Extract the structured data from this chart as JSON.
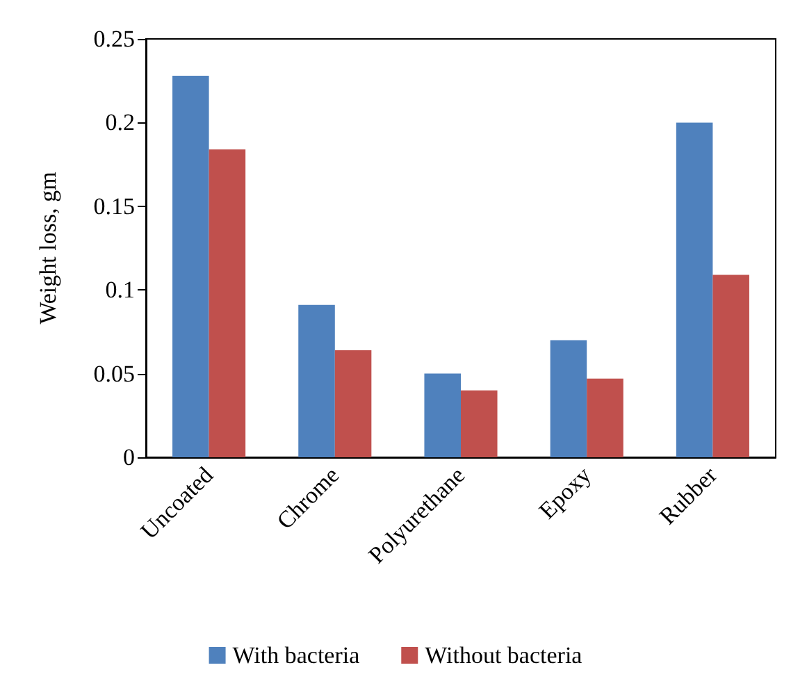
{
  "chart_data": {
    "type": "bar",
    "ylabel": "Weight loss, gm",
    "categories": [
      "Uncoated",
      "Chrome",
      "Polyurethane",
      "Epoxy",
      "Rubber"
    ],
    "series": [
      {
        "name": "With bacteria",
        "color": "#4f81bd",
        "values": [
          0.228,
          0.091,
          0.05,
          0.07,
          0.2
        ]
      },
      {
        "name": "Without bacteria",
        "color": "#c0504d",
        "values": [
          0.184,
          0.064,
          0.04,
          0.047,
          0.109
        ]
      }
    ],
    "ylim": [
      0,
      0.25
    ],
    "yticks": [
      0,
      0.05,
      0.1,
      0.15,
      0.2,
      0.25
    ],
    "grid": false,
    "legend": "bottom"
  }
}
